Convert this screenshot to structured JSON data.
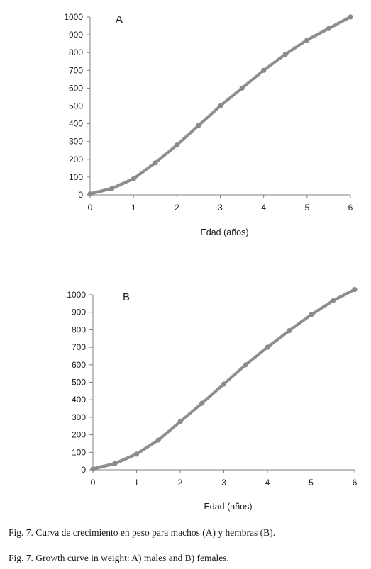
{
  "chart_data": [
    {
      "type": "line",
      "panel_label": "A",
      "xlabel": "Edad (años)",
      "ylabel": "",
      "xlim": [
        0,
        6
      ],
      "ylim": [
        0,
        1000
      ],
      "x_ticks": [
        "0",
        "1",
        "2",
        "3",
        "4",
        "5",
        "6"
      ],
      "y_ticks": [
        "0",
        "100",
        "200",
        "300",
        "400",
        "500",
        "600",
        "700",
        "800",
        "900",
        "1000"
      ],
      "grid": false,
      "series": [
        {
          "x": [
            0,
            0.5,
            1,
            1.5,
            2,
            2.5,
            3,
            3.5,
            4,
            4.5,
            5,
            5.5,
            6
          ],
          "values": [
            5,
            35,
            90,
            180,
            280,
            390,
            500,
            600,
            700,
            790,
            870,
            935,
            1000
          ]
        }
      ]
    },
    {
      "type": "line",
      "panel_label": "B",
      "xlabel": "Edad (años)",
      "ylabel": "",
      "xlim": [
        0,
        6
      ],
      "ylim": [
        0,
        1000
      ],
      "x_ticks": [
        "0",
        "1",
        "2",
        "3",
        "4",
        "5",
        "6"
      ],
      "y_ticks": [
        "0",
        "100",
        "200",
        "300",
        "400",
        "500",
        "600",
        "700",
        "800",
        "900",
        "1000"
      ],
      "grid": false,
      "series": [
        {
          "x": [
            0,
            0.5,
            1,
            1.5,
            2,
            2.5,
            3,
            3.5,
            4,
            4.5,
            5,
            5.5,
            6
          ],
          "values": [
            5,
            35,
            90,
            170,
            275,
            380,
            490,
            600,
            700,
            795,
            885,
            965,
            1030
          ]
        }
      ]
    }
  ],
  "captions": {
    "es": "Fig. 7. Curva de crecimiento en peso para machos (A) y hembras (B).",
    "en": "Fig. 7. Growth curve in weight: A) males and B) females."
  }
}
